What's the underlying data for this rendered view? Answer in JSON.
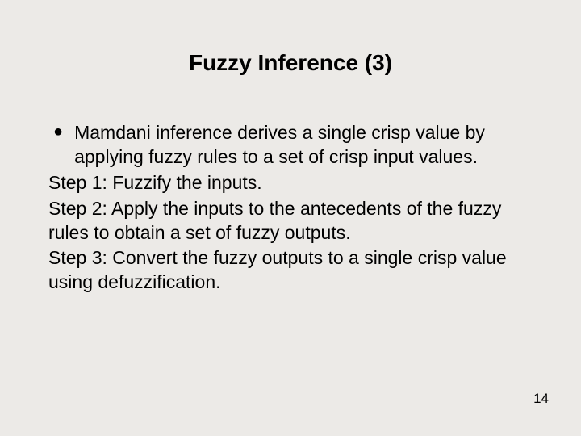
{
  "title": "Fuzzy Inference (3)",
  "title_fontsize": 28,
  "body_fontsize": 23,
  "body_lineheight": 1.3,
  "pagenum_fontsize": 17,
  "background_color": "#eceae7",
  "text_color": "#000000",
  "bullet": {
    "text": "Mamdani inference derives a single crisp value by applying fuzzy rules to a set of crisp input values."
  },
  "steps": [
    "Step 1: Fuzzify the inputs.",
    "Step 2: Apply the inputs to the antecedents of the fuzzy rules to obtain a set of fuzzy outputs.",
    "Step 3: Convert the fuzzy outputs to a single crisp value using defuzzification."
  ],
  "page_number": "14"
}
